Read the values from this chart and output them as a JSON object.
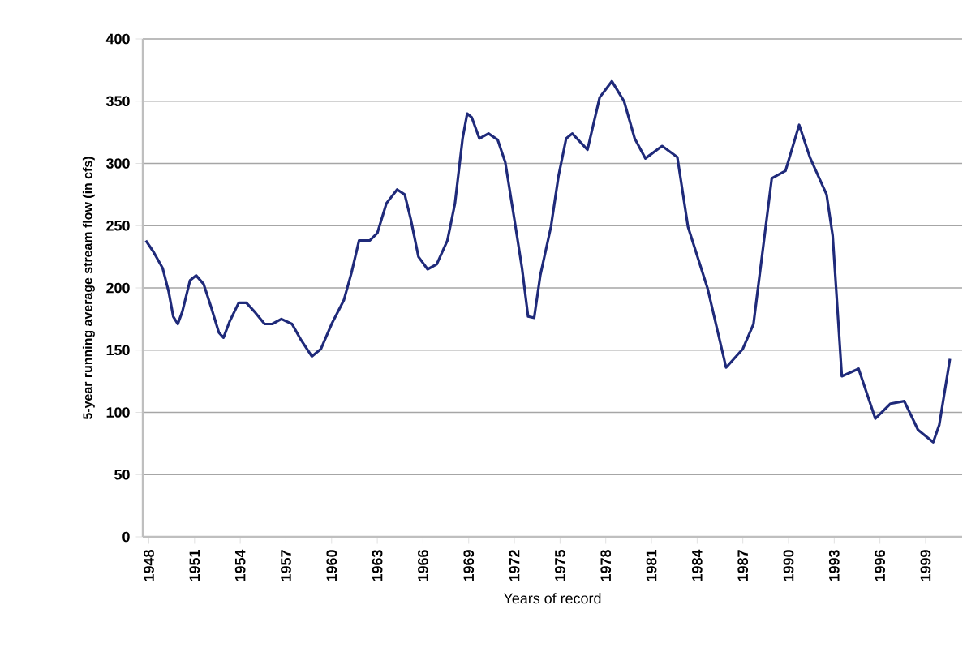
{
  "chart_data": {
    "type": "line",
    "xlabel": "Years of record",
    "ylabel": "5-year running average stream flow (in cfs)",
    "xlim": [
      1947.6,
      2001.4
    ],
    "xticks": [
      1948,
      1951,
      1954,
      1957,
      1960,
      1963,
      1966,
      1969,
      1972,
      1975,
      1978,
      1981,
      1984,
      1987,
      1990,
      1993,
      1996,
      1999
    ],
    "ylim": [
      0,
      400
    ],
    "yticks": [
      0,
      50,
      100,
      150,
      200,
      250,
      300,
      350,
      400
    ],
    "grid": "y",
    "series": [
      {
        "color": "#1f2a7a",
        "x": [
          1947.8,
          1948.3,
          1948.9,
          1949.3,
          1949.6,
          1949.9,
          1950.2,
          1950.7,
          1951.1,
          1951.6,
          1952.1,
          1952.6,
          1952.9,
          1953.3,
          1953.9,
          1954.4,
          1955.0,
          1955.6,
          1956.1,
          1956.7,
          1957.4,
          1958.0,
          1958.7,
          1959.3,
          1960.0,
          1960.8,
          1961.3,
          1961.8,
          1962.5,
          1963.0,
          1963.6,
          1964.3,
          1964.8,
          1965.2,
          1965.7,
          1966.3,
          1966.9,
          1967.6,
          1968.1,
          1968.6,
          1968.9,
          1969.2,
          1969.7,
          1970.3,
          1970.9,
          1971.4,
          1972.0,
          1972.5,
          1972.9,
          1973.3,
          1973.7,
          1974.4,
          1974.9,
          1975.4,
          1975.8,
          1976.8,
          1977.6,
          1978.4,
          1979.2,
          1979.9,
          1980.6,
          1981.7,
          1982.7,
          1983.4,
          1984.7,
          1985.9,
          1987.0,
          1987.7,
          1988.9,
          1989.8,
          1990.7,
          1991.4,
          1992.5,
          1992.9,
          1993.5,
          1994.6,
          1995.7,
          1996.7,
          1997.6,
          1998.5,
          1999.5,
          1999.9,
          2000.6
        ],
        "values": [
          238,
          229,
          216,
          197,
          177,
          171,
          181,
          206,
          210,
          203,
          184,
          164,
          160,
          173,
          188,
          188,
          180,
          171,
          171,
          175,
          171,
          158,
          145,
          151,
          171,
          190,
          212,
          238,
          238,
          244,
          268,
          279,
          275,
          255,
          225,
          215,
          219,
          238,
          268,
          320,
          340,
          337,
          320,
          324,
          319,
          301,
          255,
          216,
          177,
          176,
          210,
          249,
          290,
          320,
          324,
          311,
          353,
          366,
          350,
          320,
          304,
          314,
          305,
          249,
          199,
          136,
          151,
          171,
          288,
          294,
          331,
          305,
          275,
          242,
          129,
          135,
          95,
          107,
          109,
          86,
          76,
          90,
          143
        ]
      }
    ]
  }
}
